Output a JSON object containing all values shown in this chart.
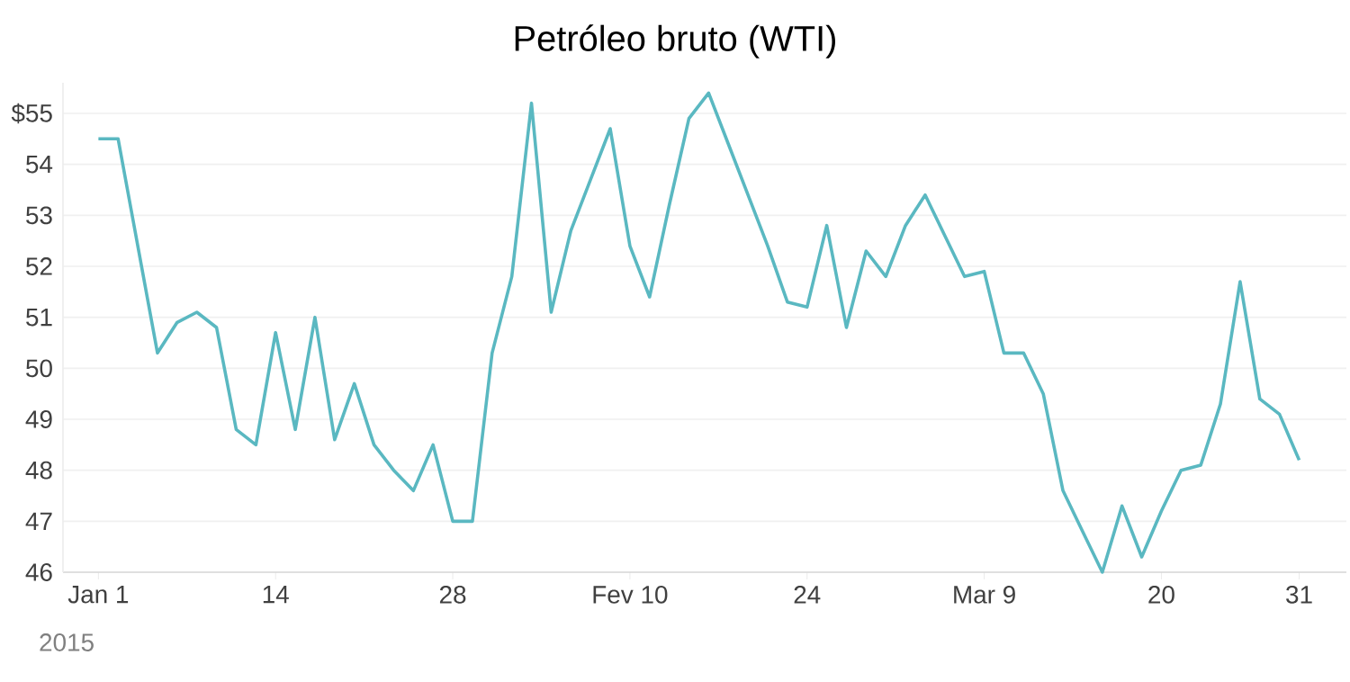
{
  "chart_data": {
    "type": "line",
    "title": "Petróleo bruto (WTI)",
    "categories": [
      "Jan 1",
      null,
      null,
      null,
      null,
      null,
      null,
      null,
      null,
      "14",
      null,
      null,
      null,
      null,
      null,
      null,
      null,
      null,
      "28",
      null,
      null,
      null,
      null,
      null,
      null,
      null,
      null,
      "Fev 10",
      null,
      null,
      null,
      null,
      null,
      null,
      null,
      null,
      "24",
      null,
      null,
      null,
      null,
      null,
      null,
      null,
      null,
      "Mar 9",
      null,
      null,
      null,
      null,
      null,
      null,
      null,
      null,
      "20",
      null,
      null,
      null,
      null,
      null,
      null,
      "31"
    ],
    "values": [
      54.5,
      54.5,
      52.4,
      50.3,
      50.9,
      51.1,
      50.8,
      48.8,
      48.5,
      50.7,
      48.8,
      51.0,
      48.6,
      49.7,
      48.5,
      48.0,
      47.6,
      48.5,
      47.0,
      47.0,
      50.3,
      51.8,
      55.2,
      51.1,
      52.7,
      53.7,
      54.7,
      52.4,
      51.4,
      53.2,
      54.9,
      55.4,
      54.4,
      53.4,
      52.4,
      51.3,
      51.2,
      52.8,
      50.8,
      52.3,
      51.8,
      52.8,
      53.4,
      52.6,
      51.8,
      51.9,
      50.3,
      50.3,
      49.5,
      47.6,
      46.8,
      46.0,
      47.3,
      46.3,
      47.2,
      48.0,
      48.1,
      49.3,
      51.7,
      49.4,
      49.1,
      48.2
    ],
    "color": "#5ab8c1",
    "ylim": [
      46,
      55.6
    ],
    "yticks": [
      46,
      47,
      48,
      49,
      50,
      51,
      52,
      53,
      54,
      {
        "value": 55,
        "label": "$55"
      }
    ],
    "grid": "y",
    "annotations": [
      "2015"
    ]
  }
}
